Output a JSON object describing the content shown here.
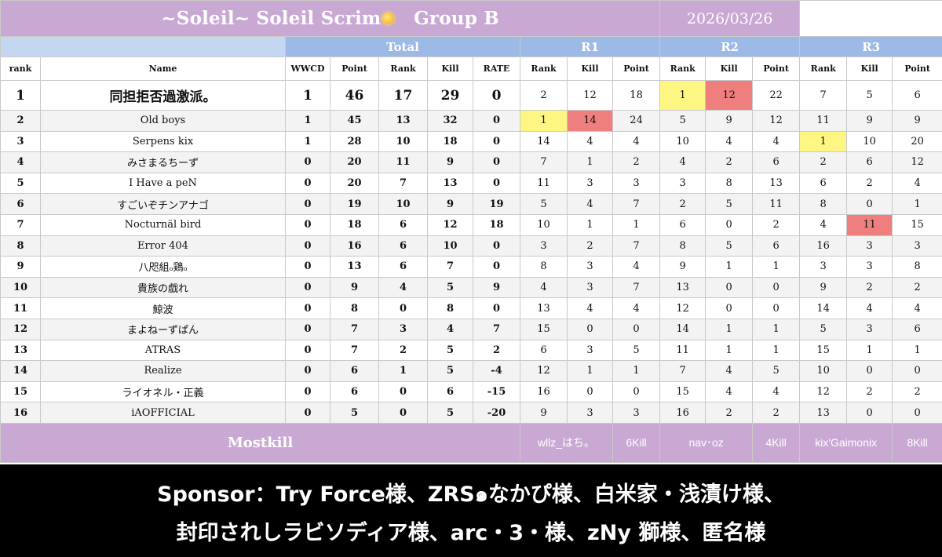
{
  "header": {
    "title": "~Soleil~   Soleil Scrim",
    "group": "Group B",
    "date": "2026/03/26"
  },
  "groups": {
    "total": "Total",
    "r1": "R1",
    "r2": "R2",
    "r3": "R3"
  },
  "columns": [
    "rank",
    "Name",
    "WWCD",
    "Point",
    "Rank",
    "Kill",
    "RATE",
    "Rank",
    "Kill",
    "Point",
    "Rank",
    "Kill",
    "Point",
    "Rank",
    "Kill",
    "Point"
  ],
  "rows": [
    [
      "1",
      "同担拒否過激派。",
      "1",
      "46",
      "17",
      "29",
      "0",
      "2",
      "12",
      "18",
      "1",
      "12",
      "22",
      "7",
      "5",
      "6"
    ],
    [
      "2",
      "Old boys",
      "1",
      "45",
      "13",
      "32",
      "0",
      "1",
      "14",
      "24",
      "5",
      "9",
      "12",
      "11",
      "9",
      "9"
    ],
    [
      "3",
      "Serpens kix",
      "1",
      "28",
      "10",
      "18",
      "0",
      "14",
      "4",
      "4",
      "10",
      "4",
      "4",
      "1",
      "10",
      "20"
    ],
    [
      "4",
      "みさまるちーず",
      "0",
      "20",
      "11",
      "9",
      "0",
      "7",
      "1",
      "2",
      "4",
      "2",
      "6",
      "2",
      "6",
      "12"
    ],
    [
      "5",
      "I Have a peN",
      "0",
      "20",
      "7",
      "13",
      "0",
      "11",
      "3",
      "3",
      "3",
      "8",
      "13",
      "6",
      "2",
      "4"
    ],
    [
      "6",
      "すごいぞチンアナゴ",
      "0",
      "19",
      "10",
      "9",
      "19",
      "5",
      "4",
      "7",
      "2",
      "5",
      "11",
      "8",
      "0",
      "1"
    ],
    [
      "7",
      "Nocturnäl bird",
      "0",
      "18",
      "6",
      "12",
      "18",
      "10",
      "1",
      "1",
      "6",
      "0",
      "2",
      "4",
      "11",
      "15"
    ],
    [
      "8",
      "Error 404",
      "0",
      "16",
      "6",
      "10",
      "0",
      "3",
      "2",
      "7",
      "8",
      "5",
      "6",
      "16",
      "3",
      "3"
    ],
    [
      "9",
      "八咫組ₒ鶏ₒ",
      "0",
      "13",
      "6",
      "7",
      "0",
      "8",
      "3",
      "4",
      "9",
      "1",
      "1",
      "3",
      "3",
      "8"
    ],
    [
      "10",
      "貴族の戯れ",
      "0",
      "9",
      "4",
      "5",
      "9",
      "4",
      "3",
      "7",
      "13",
      "0",
      "0",
      "9",
      "2",
      "2"
    ],
    [
      "11",
      "鯨波",
      "0",
      "8",
      "0",
      "8",
      "0",
      "13",
      "4",
      "4",
      "12",
      "0",
      "0",
      "14",
      "4",
      "4"
    ],
    [
      "12",
      "まよねーずぱん",
      "0",
      "7",
      "3",
      "4",
      "7",
      "15",
      "0",
      "0",
      "14",
      "1",
      "1",
      "5",
      "3",
      "6"
    ],
    [
      "13",
      "ATRAS",
      "0",
      "7",
      "2",
      "5",
      "2",
      "6",
      "3",
      "5",
      "11",
      "1",
      "1",
      "15",
      "1",
      "1"
    ],
    [
      "14",
      "Realize",
      "0",
      "6",
      "1",
      "5",
      "-4",
      "12",
      "1",
      "1",
      "7",
      "4",
      "5",
      "10",
      "0",
      "0"
    ],
    [
      "15",
      "ライオネル・正義",
      "0",
      "6",
      "0",
      "6",
      "-15",
      "16",
      "0",
      "0",
      "15",
      "4",
      "4",
      "12",
      "2",
      "2"
    ],
    [
      "16",
      "iAOFFICIAL",
      "0",
      "5",
      "0",
      "5",
      "-20",
      "9",
      "3",
      "3",
      "16",
      "2",
      "2",
      "13",
      "0",
      "0"
    ]
  ],
  "highlights": {
    "yellow": "#fdf682",
    "red": "#ef7f7f",
    "cells": [
      {
        "row": 0,
        "col": 10,
        "color": "yellow"
      },
      {
        "row": 0,
        "col": 11,
        "color": "red"
      },
      {
        "row": 1,
        "col": 7,
        "color": "yellow"
      },
      {
        "row": 1,
        "col": 8,
        "color": "red"
      },
      {
        "row": 2,
        "col": 13,
        "color": "yellow"
      },
      {
        "row": 6,
        "col": 14,
        "color": "red"
      }
    ]
  },
  "mostkill": {
    "label": "Mostkill",
    "r1": {
      "name": "wllz_はち。",
      "kills": "6Kill"
    },
    "r2": {
      "name": "nav･oz",
      "kills": "4Kill"
    },
    "r3": {
      "name": "kix'Gaimonix",
      "kills": "8Kill"
    }
  },
  "sponsor": {
    "line1": "Sponsor：Try Force様、ZRS๑なかぴ様、白米家・浅漬け様、",
    "line2": "封印されしラビソディア様、arc・3・様、zNy 獅様、匿名様"
  },
  "colors": {
    "title_bg": "#c9a9d4",
    "group_bg": "#9db9e6",
    "sponsor_bg": "#000000"
  }
}
